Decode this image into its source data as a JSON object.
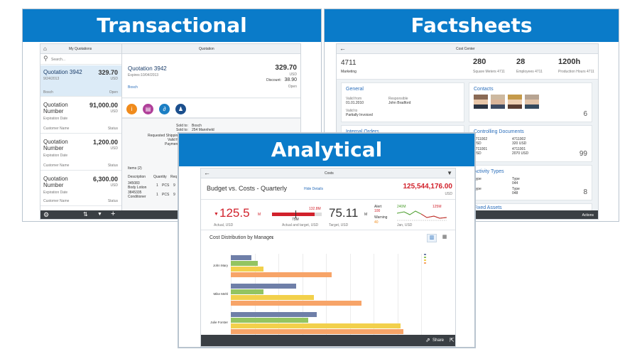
{
  "panels": {
    "transactional": "Transactional",
    "factsheets": "Factsheets",
    "analytical": "Analytical"
  },
  "transactional": {
    "master_title": "My Quotations",
    "search_placeholder": "Search...",
    "items": [
      {
        "title": "Quotation 3942",
        "amount": "329.70",
        "currency": "USD",
        "date": "9/24/2013",
        "left_meta": "Bosch",
        "right_meta": "Open"
      },
      {
        "title": "Quotation Number",
        "amount": "91,000.00",
        "currency": "USD",
        "date": "Expiration Date",
        "left_meta": "Customer Name",
        "right_meta": "Status"
      },
      {
        "title": "Quotation Number",
        "amount": "1,200.00",
        "currency": "USD",
        "date": "Expiration Date",
        "left_meta": "Customer Name",
        "right_meta": "Status"
      },
      {
        "title": "Quotation Number",
        "amount": "6,300.00",
        "currency": "USD",
        "date": "Expiration Date",
        "left_meta": "Customer Name",
        "right_meta": "Status"
      }
    ],
    "detail": {
      "header": "Quotation",
      "title": "Quotation 3942",
      "expires": "Expires:10/04/2013",
      "amount": "329.70",
      "currency": "USD",
      "discount_label": "Discount:",
      "discount_value": "38.90",
      "status": "Open",
      "customer": "Bosch",
      "sold_to_label": "Sold to:",
      "sold_to_value": "Bosch",
      "ship_to_label": "Sold to:",
      "ship_to_value": "254 Mannheld",
      "requested_label": "Requested Shipping",
      "valid_label": "Valid fro",
      "payment_label": "Payment",
      "items_header": "Items (2)",
      "columns": [
        "Description",
        "Quantity",
        "Req"
      ],
      "rows": [
        {
          "id": "345083",
          "name": "Body Lotion",
          "qty": "1",
          "unit": "PCS",
          "req": "9"
        },
        {
          "id": "3845335",
          "name": "Conditioner",
          "qty": "1",
          "unit": "PCS",
          "req": "9"
        }
      ]
    }
  },
  "factsheets": {
    "header": "Cost Center",
    "id": "4711",
    "dept": "Marketing",
    "kpis": [
      {
        "value": "280",
        "label": "Square Meters 4711"
      },
      {
        "value": "28",
        "label": "Employees 4711"
      },
      {
        "value": "1200h",
        "label": "Production Hours 4711"
      }
    ],
    "general": {
      "title": "General",
      "valid_from_label": "Valid from",
      "valid_from": "01.01.2010",
      "responsible_label": "Responsible",
      "responsible": "John Bradford",
      "valid_to_label": "Valid to",
      "valid_to": "Partially Invoiced"
    },
    "contacts": {
      "title": "Contacts",
      "count": "6"
    },
    "internal_orders": {
      "title": "Internal Orders"
    },
    "controlling": {
      "title": "Controlling Documents",
      "rows": [
        {
          "left": "4711002",
          "left_sub": "USD",
          "right": "4711002",
          "right_sub": "320 USD"
        },
        {
          "left": "4711001",
          "left_sub": "USD",
          "right": "4711001",
          "right_sub": "2070 USD"
        }
      ],
      "count": "99"
    },
    "activity": {
      "title": "Activity Types",
      "rows": [
        {
          "left": "Type",
          "left_sub": "6",
          "right": "Type",
          "right_sub": "044"
        },
        {
          "left": "Type",
          "left_sub": "6",
          "right": "Type",
          "right_sub": "048"
        }
      ],
      "count": "8"
    },
    "fixed_assets": {
      "title": "Fixed Assets"
    },
    "actions": "Actions"
  },
  "analytical": {
    "header": "Costs",
    "budget_title": "Budget vs. Costs - Quarterly",
    "hide_details": "Hide Details",
    "total": "125,544,176.00",
    "total_currency": "USD",
    "kpi1": {
      "value": "125.5",
      "unit": "M",
      "label": "Actual, USD"
    },
    "kpi2": {
      "target": "132.8M",
      "value": "75M",
      "label": "Actual and target, USD"
    },
    "kpi3": {
      "value": "75.11",
      "unit": "M",
      "label": "Target, USD"
    },
    "alert": {
      "alert_label": "Alert",
      "alert_value": "100",
      "warning_label": "Warning",
      "warning_value": "40"
    },
    "spark": {
      "start": "240M",
      "end": "125M",
      "label": "Jan, USD"
    },
    "chart_title": "Cost Distribution by Manager",
    "share": "Share",
    "colors": {
      "blue": "#6f7fa8",
      "green": "#93c461",
      "yellow": "#f2d04b",
      "orange": "#f7a468",
      "red": "#d1212b",
      "accent": "#0a7bc9"
    }
  },
  "chart_data": {
    "type": "bar",
    "orientation": "horizontal",
    "title": "Cost Distribution by Manager",
    "categories": [
      "John Mary",
      "Mike Mehl",
      "Julie Forster"
    ],
    "series": [
      {
        "values": [
          3.5,
          11,
          14.5
        ],
        "color": "#6f7fa8"
      },
      {
        "values": [
          4.5,
          5.5,
          13
        ],
        "color": "#93c461"
      },
      {
        "values": [
          5.5,
          14,
          28.5
        ],
        "color": "#f2d04b"
      },
      {
        "values": [
          17,
          22,
          29
        ],
        "color": "#f7a468"
      }
    ],
    "xlim": [
      0,
      32
    ],
    "grid": true,
    "legend": "top-right"
  }
}
